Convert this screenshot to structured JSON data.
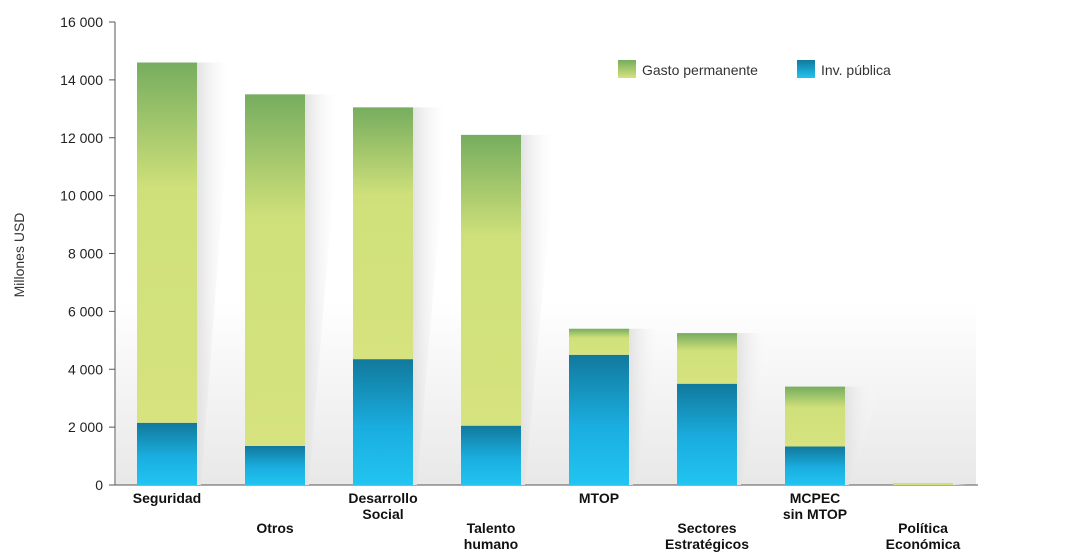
{
  "chart_data": {
    "type": "bar",
    "stacked": true,
    "title": "",
    "xlabel": "",
    "ylabel": "Millones USD",
    "ylim": [
      0,
      16000
    ],
    "yticks": [
      0,
      2000,
      4000,
      6000,
      8000,
      10000,
      12000,
      14000,
      16000
    ],
    "ytick_labels": [
      "0",
      "2 000",
      "4 000",
      "6 000",
      "8 000",
      "10 000",
      "12 000",
      "14 000",
      "16 000"
    ],
    "categories": [
      "Seguridad",
      "Otros",
      "Desarrollo Social",
      "Talento humano",
      "MTOP",
      "Sectores Estratégicos",
      "MCPEC sin MTOP",
      "Política Económica"
    ],
    "category_label_lines": [
      [
        "Seguridad"
      ],
      [
        "Otros"
      ],
      [
        "Desarrollo",
        "Social"
      ],
      [
        "Talento",
        "humano"
      ],
      [
        "MTOP"
      ],
      [
        "Sectores",
        "Estratégicos"
      ],
      [
        "MCPEC",
        "sin MTOP"
      ],
      [
        "Política",
        "Económica"
      ]
    ],
    "series": [
      {
        "name": "Inv. pública",
        "values": [
          2150,
          1350,
          4350,
          2050,
          4500,
          3500,
          1330,
          0
        ],
        "color": "#1aaee0",
        "color_dark": "#117d9e"
      },
      {
        "name": "Gasto permanente",
        "values": [
          12450,
          12150,
          8700,
          10050,
          900,
          1750,
          2070,
          50
        ],
        "color": "#cfe07a",
        "color_dark": "#76ad5e"
      }
    ],
    "legend": {
      "position": "top-right",
      "order": [
        "Gasto permanente",
        "Inv. pública"
      ]
    },
    "grid": false
  }
}
